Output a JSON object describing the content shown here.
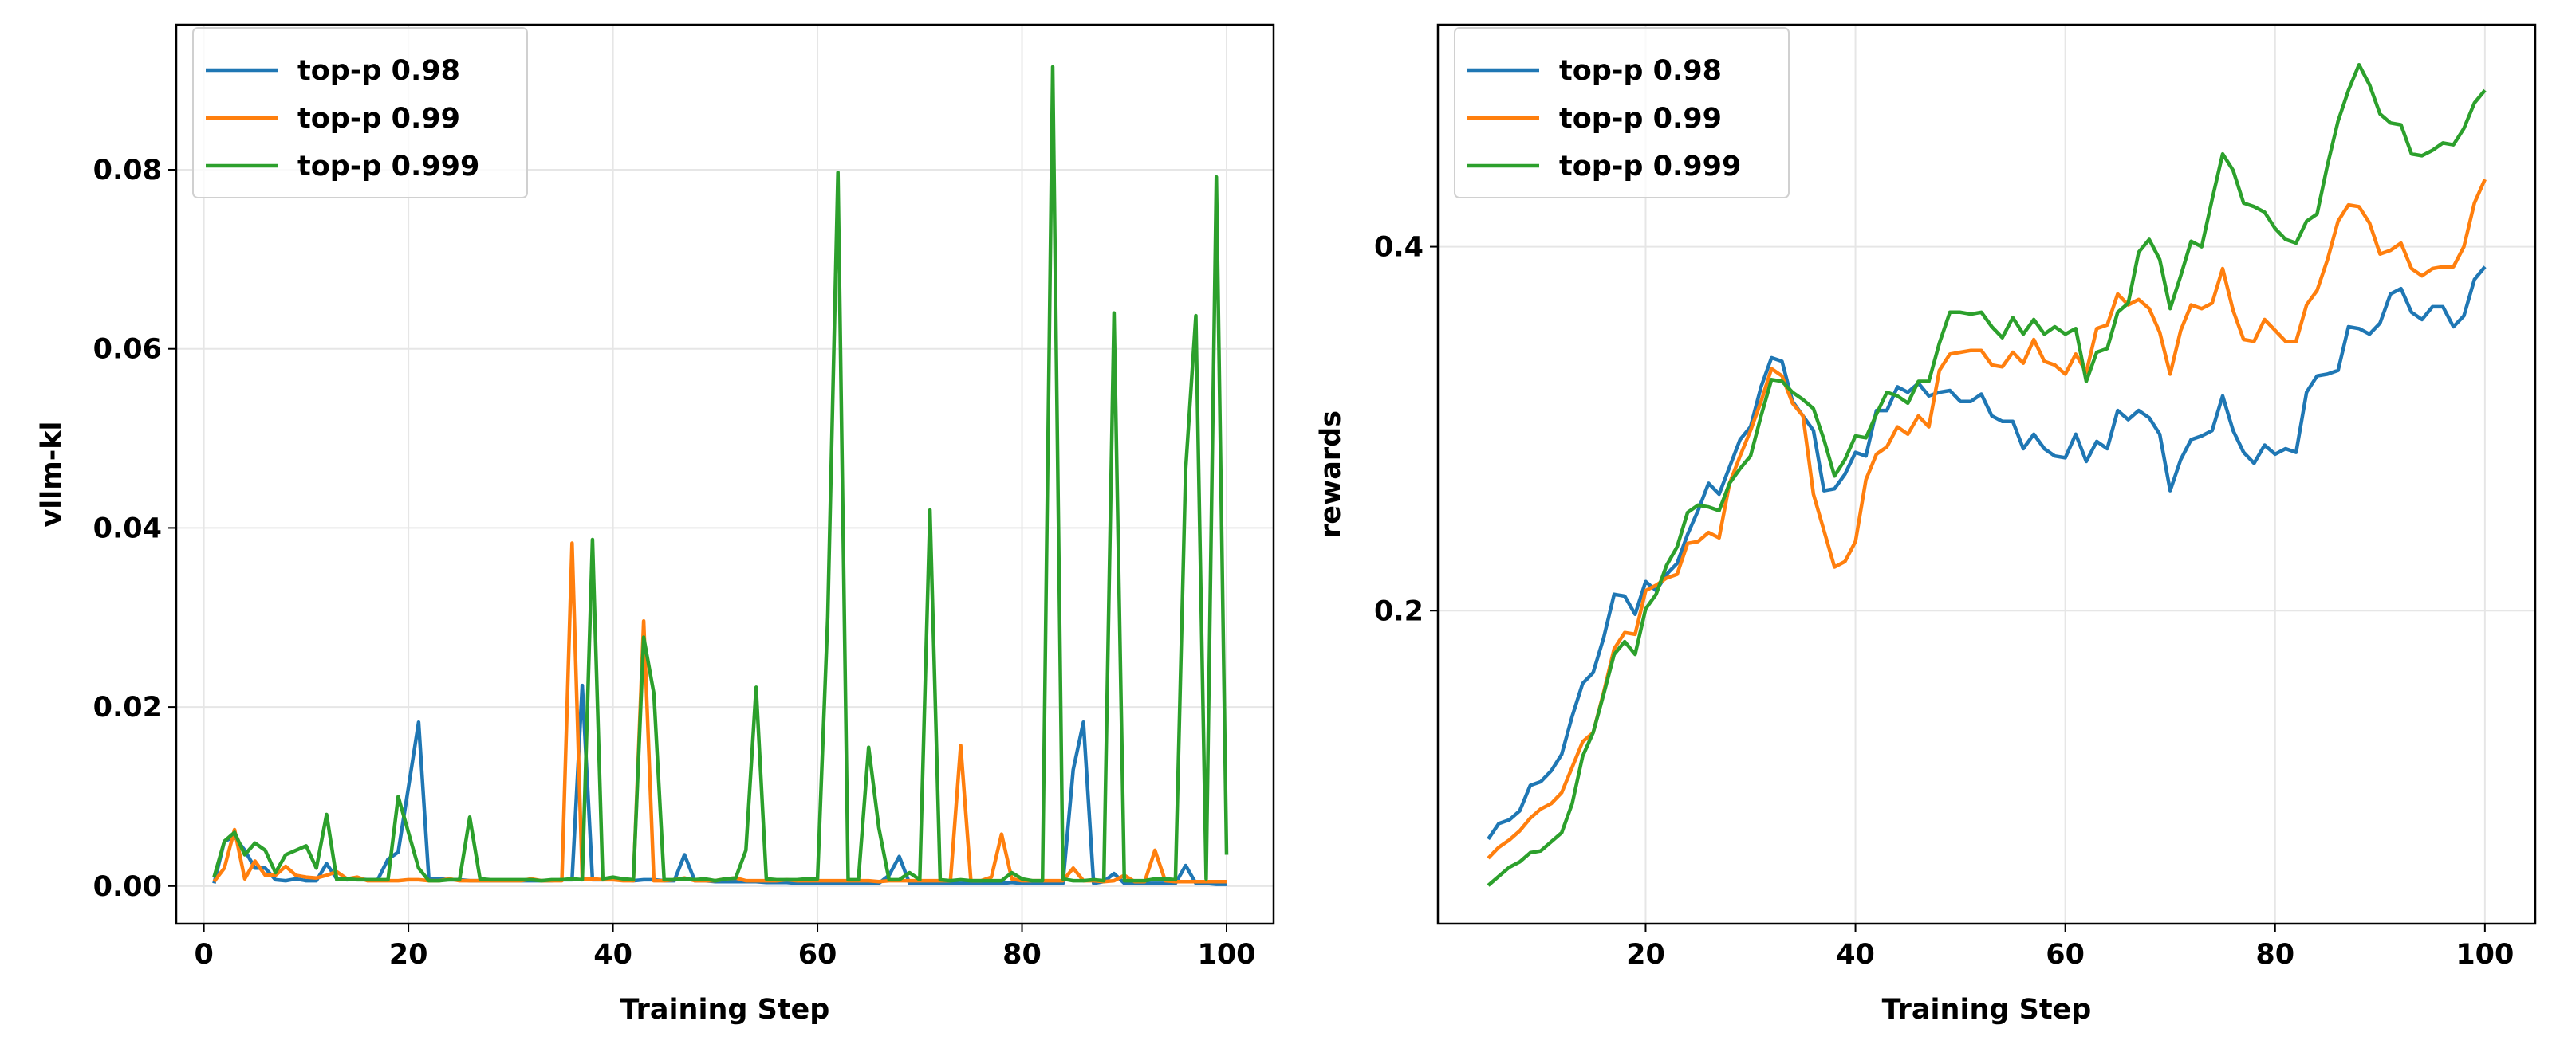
{
  "colors": {
    "top-p 0.98": "#1f77b4",
    "top-p 0.99": "#ff7f0e",
    "top-p 0.999": "#2ca02c",
    "grid": "#e6e6e6"
  },
  "chart_data": [
    {
      "type": "line",
      "xlabel": "Training Step",
      "ylabel": "vllm-kl",
      "xlim": [
        -2.7,
        104.6
      ],
      "ylim": [
        -0.0042,
        0.0962
      ],
      "xticks": [
        0,
        20,
        40,
        60,
        80,
        100
      ],
      "xtick_labels": [
        "0",
        "20",
        "40",
        "60",
        "80",
        "100"
      ],
      "yticks": [
        0,
        0.02,
        0.04,
        0.06,
        0.08
      ],
      "ytick_labels": [
        "0.00",
        "0.02",
        "0.04",
        "0.06",
        "0.08"
      ],
      "grid": true,
      "legend_position": "top-left",
      "x_start": 1,
      "series": [
        {
          "name": "top-p 0.98",
          "color": "#1f77b4",
          "values": [
            0.0003,
            0.005,
            0.0055,
            0.004,
            0.002,
            0.002,
            0.0007,
            0.0006,
            0.0008,
            0.0006,
            0.0006,
            0.0025,
            0.0008,
            0.0007,
            0.0008,
            0.0007,
            0.0007,
            0.003,
            0.0038,
            0.011,
            0.0183,
            0.0008,
            0.0008,
            0.0007,
            0.0007,
            0.0006,
            0.0006,
            0.0006,
            0.0006,
            0.0006,
            0.0006,
            0.0006,
            0.0006,
            0.0006,
            0.0007,
            0.0007,
            0.0224,
            0.0007,
            0.0007,
            0.0008,
            0.0007,
            0.0006,
            0.0007,
            0.0007,
            0.0006,
            0.0006,
            0.0035,
            0.0006,
            0.0006,
            0.0005,
            0.0005,
            0.0005,
            0.0005,
            0.0005,
            0.0004,
            0.0004,
            0.0004,
            0.0003,
            0.0003,
            0.0003,
            0.0003,
            0.0003,
            0.0003,
            0.0003,
            0.0003,
            0.0003,
            0.0012,
            0.0033,
            0.0003,
            0.0003,
            0.0003,
            0.0003,
            0.0003,
            0.0003,
            0.0003,
            0.0003,
            0.0003,
            0.0003,
            0.0004,
            0.0003,
            0.0003,
            0.0003,
            0.0003,
            0.0003,
            0.013,
            0.0183,
            0.0003,
            0.0005,
            0.0014,
            0.0003,
            0.0003,
            0.0003,
            0.0003,
            0.0003,
            0.0003,
            0.0023,
            0.0003,
            0.0003,
            0.0002,
            0.0002
          ]
        },
        {
          "name": "top-p 0.99",
          "color": "#ff7f0e",
          "values": [
            0.0005,
            0.002,
            0.0063,
            0.0008,
            0.0028,
            0.0012,
            0.0012,
            0.0022,
            0.0012,
            0.001,
            0.0009,
            0.0012,
            0.0016,
            0.0008,
            0.001,
            0.0006,
            0.0006,
            0.0006,
            0.0006,
            0.0007,
            0.0007,
            0.0006,
            0.0006,
            0.0008,
            0.0006,
            0.0006,
            0.0006,
            0.0006,
            0.0006,
            0.0006,
            0.0006,
            0.0008,
            0.0006,
            0.0006,
            0.0006,
            0.0383,
            0.0008,
            0.0008,
            0.0007,
            0.0007,
            0.0006,
            0.0006,
            0.0296,
            0.0006,
            0.0006,
            0.0007,
            0.0009,
            0.0006,
            0.0006,
            0.0006,
            0.0008,
            0.0009,
            0.0006,
            0.0006,
            0.0006,
            0.0006,
            0.0007,
            0.0006,
            0.0006,
            0.0006,
            0.0006,
            0.0006,
            0.0006,
            0.0006,
            0.0006,
            0.0005,
            0.0006,
            0.0006,
            0.0006,
            0.0006,
            0.0006,
            0.0006,
            0.0006,
            0.0157,
            0.0006,
            0.0006,
            0.001,
            0.0058,
            0.0008,
            0.0006,
            0.0006,
            0.0006,
            0.0006,
            0.0006,
            0.002,
            0.0006,
            0.0006,
            0.0005,
            0.0006,
            0.0012,
            0.0005,
            0.0005,
            0.004,
            0.0006,
            0.0005,
            0.0005,
            0.0005,
            0.0005,
            0.0005,
            0.0005
          ]
        },
        {
          "name": "top-p 0.999",
          "color": "#2ca02c",
          "values": [
            0.001,
            0.005,
            0.006,
            0.0035,
            0.0048,
            0.004,
            0.0015,
            0.0035,
            0.004,
            0.0045,
            0.002,
            0.008,
            0.0007,
            0.0008,
            0.0007,
            0.0007,
            0.0007,
            0.0007,
            0.01,
            0.006,
            0.002,
            0.0006,
            0.0006,
            0.0007,
            0.0007,
            0.0077,
            0.0008,
            0.0007,
            0.0007,
            0.0007,
            0.0007,
            0.0007,
            0.0006,
            0.0007,
            0.0007,
            0.0008,
            0.0007,
            0.0387,
            0.0008,
            0.001,
            0.0008,
            0.0007,
            0.0278,
            0.0215,
            0.0007,
            0.0007,
            0.0008,
            0.0007,
            0.0008,
            0.0006,
            0.0008,
            0.0009,
            0.004,
            0.0222,
            0.0008,
            0.0007,
            0.0007,
            0.0007,
            0.0008,
            0.0008,
            0.03,
            0.0797,
            0.0007,
            0.0007,
            0.0155,
            0.0065,
            0.0007,
            0.0007,
            0.0015,
            0.0007,
            0.042,
            0.0007,
            0.0006,
            0.0007,
            0.0006,
            0.0006,
            0.0006,
            0.0006,
            0.0015,
            0.0008,
            0.0006,
            0.0006,
            0.0915,
            0.0008,
            0.0006,
            0.0006,
            0.0007,
            0.0006,
            0.064,
            0.0006,
            0.0006,
            0.0006,
            0.0008,
            0.0008,
            0.0007,
            0.0465,
            0.0637,
            0.0008,
            0.0792,
            0.0035
          ]
        }
      ]
    },
    {
      "type": "line",
      "xlabel": "Training Step",
      "ylabel": "rewards",
      "xlim": [
        0.2,
        104.8
      ],
      "ylim": [
        0.028,
        0.522
      ],
      "xticks": [
        20,
        40,
        60,
        80,
        100
      ],
      "xtick_labels": [
        "20",
        "40",
        "60",
        "80",
        "100"
      ],
      "yticks": [
        0.2,
        0.4
      ],
      "ytick_labels": [
        "0.2",
        "0.4"
      ],
      "grid": true,
      "legend_position": "top-left",
      "x_start": 5,
      "series": [
        {
          "name": "top-p 0.98",
          "color": "#1f77b4",
          "values": [
            0.0745,
            0.083,
            0.085,
            0.09,
            0.104,
            0.106,
            0.112,
            0.121,
            0.142,
            0.16,
            0.166,
            0.185,
            0.209,
            0.208,
            0.198,
            0.216,
            0.211,
            0.22,
            0.226,
            0.242,
            0.255,
            0.27,
            0.264,
            0.279,
            0.294,
            0.301,
            0.323,
            0.339,
            0.337,
            0.315,
            0.307,
            0.299,
            0.266,
            0.267,
            0.275,
            0.287,
            0.285,
            0.31,
            0.31,
            0.323,
            0.32,
            0.325,
            0.318,
            0.32,
            0.321,
            0.315,
            0.315,
            0.319,
            0.307,
            0.304,
            0.304,
            0.289,
            0.297,
            0.289,
            0.285,
            0.284,
            0.297,
            0.282,
            0.293,
            0.289,
            0.31,
            0.305,
            0.31,
            0.306,
            0.297,
            0.266,
            0.283,
            0.294,
            0.296,
            0.299,
            0.318,
            0.299,
            0.287,
            0.281,
            0.291,
            0.286,
            0.289,
            0.287,
            0.32,
            0.329,
            0.33,
            0.332,
            0.356,
            0.355,
            0.352,
            0.358,
            0.374,
            0.377,
            0.364,
            0.36,
            0.367,
            0.367,
            0.356,
            0.362,
            0.382,
            0.389
          ]
        },
        {
          "name": "top-p 0.99",
          "color": "#ff7f0e",
          "values": [
            0.064,
            0.07,
            0.074,
            0.079,
            0.086,
            0.091,
            0.094,
            0.1,
            0.114,
            0.128,
            0.133,
            0.155,
            0.179,
            0.188,
            0.187,
            0.211,
            0.214,
            0.218,
            0.22,
            0.237,
            0.238,
            0.243,
            0.24,
            0.27,
            0.285,
            0.299,
            0.315,
            0.333,
            0.329,
            0.314,
            0.307,
            0.264,
            0.244,
            0.224,
            0.227,
            0.238,
            0.272,
            0.286,
            0.29,
            0.301,
            0.297,
            0.307,
            0.301,
            0.332,
            0.341,
            0.342,
            0.343,
            0.343,
            0.335,
            0.334,
            0.342,
            0.336,
            0.349,
            0.337,
            0.335,
            0.33,
            0.341,
            0.331,
            0.355,
            0.357,
            0.374,
            0.368,
            0.371,
            0.366,
            0.353,
            0.33,
            0.354,
            0.368,
            0.366,
            0.369,
            0.388,
            0.365,
            0.349,
            0.348,
            0.36,
            0.354,
            0.348,
            0.348,
            0.368,
            0.376,
            0.393,
            0.414,
            0.423,
            0.422,
            0.413,
            0.396,
            0.398,
            0.402,
            0.388,
            0.384,
            0.388,
            0.389,
            0.389,
            0.4,
            0.424,
            0.437
          ]
        },
        {
          "name": "top-p 0.999",
          "color": "#2ca02c",
          "values": [
            0.049,
            0.054,
            0.059,
            0.062,
            0.067,
            0.068,
            0.073,
            0.078,
            0.094,
            0.12,
            0.133,
            0.154,
            0.176,
            0.183,
            0.176,
            0.201,
            0.209,
            0.225,
            0.235,
            0.254,
            0.258,
            0.257,
            0.255,
            0.27,
            0.278,
            0.285,
            0.307,
            0.327,
            0.326,
            0.32,
            0.316,
            0.311,
            0.294,
            0.274,
            0.283,
            0.296,
            0.295,
            0.308,
            0.32,
            0.318,
            0.314,
            0.326,
            0.326,
            0.347,
            0.364,
            0.364,
            0.363,
            0.364,
            0.356,
            0.35,
            0.361,
            0.352,
            0.36,
            0.352,
            0.356,
            0.352,
            0.355,
            0.326,
            0.342,
            0.344,
            0.364,
            0.369,
            0.397,
            0.404,
            0.393,
            0.366,
            0.384,
            0.403,
            0.4,
            0.426,
            0.451,
            0.442,
            0.424,
            0.422,
            0.419,
            0.41,
            0.404,
            0.402,
            0.414,
            0.418,
            0.445,
            0.469,
            0.486,
            0.5,
            0.489,
            0.473,
            0.468,
            0.467,
            0.451,
            0.45,
            0.453,
            0.457,
            0.456,
            0.465,
            0.479,
            0.486
          ]
        }
      ]
    }
  ]
}
